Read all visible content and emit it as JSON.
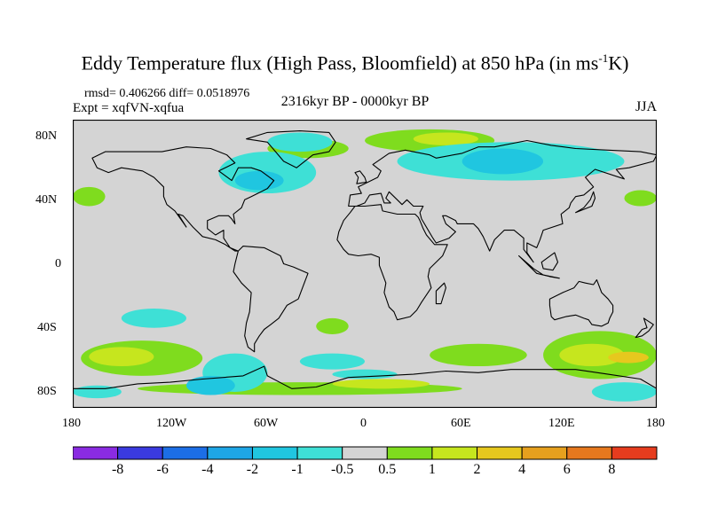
{
  "title": {
    "main": "Eddy Temperature flux (High Pass, Bloomfield) at 850 hPa (in ms",
    "sup": "-1",
    "end": "K)"
  },
  "stats": "rmsd= 0.406266 diff= 0.0518976",
  "experiment": "Expt = xqfVN-xqfua",
  "period": "2316kyr BP - 0000kyr BP",
  "season": "JJA",
  "colors": {
    "land_outline": "#000000",
    "neutral": "#d4d4d4"
  },
  "axes": {
    "lat_ticks": [
      "80N",
      "40N",
      "0",
      "40S",
      "80S"
    ],
    "lon_ticks": [
      "180",
      "120W",
      "60W",
      "0",
      "60E",
      "120E",
      "180"
    ]
  },
  "colorbar": {
    "colors": [
      "#8a2be2",
      "#3a3ae0",
      "#1c6ee6",
      "#1ea6e6",
      "#20c6e0",
      "#3ee0d6",
      "#d4d4d4",
      "#7fdc1e",
      "#c6e61e",
      "#e6c81e",
      "#e6a01e",
      "#e6781e",
      "#e63c1e"
    ],
    "labels": [
      "-8",
      "-6",
      "-4",
      "-2",
      "-1",
      "-0.5",
      "0.5",
      "1",
      "2",
      "4",
      "6",
      "8"
    ]
  },
  "features": [
    {
      "type": "pos",
      "color": "#7fdc1e",
      "ll": [
        -180,
        48,
        -160,
        36
      ]
    },
    {
      "type": "pos",
      "color": "#7fdc1e",
      "ll": [
        160,
        46,
        180,
        36
      ]
    },
    {
      "type": "pos",
      "color": "#7fdc1e",
      "ll": [
        -175,
        -48,
        -100,
        -70
      ]
    },
    {
      "type": "pos",
      "color": "#c6e61e",
      "ll": [
        -170,
        -52,
        -130,
        -64
      ]
    },
    {
      "type": "pos",
      "color": "#7fdc1e",
      "ll": [
        40,
        -50,
        100,
        -64
      ]
    },
    {
      "type": "pos",
      "color": "#7fdc1e",
      "ll": [
        110,
        -42,
        180,
        -72
      ]
    },
    {
      "type": "pos",
      "color": "#c6e61e",
      "ll": [
        120,
        -50,
        160,
        -64
      ]
    },
    {
      "type": "pos",
      "color": "#e6c81e",
      "ll": [
        150,
        -55,
        175,
        -62
      ]
    },
    {
      "type": "pos",
      "color": "#7fdc1e",
      "ll": [
        -140,
        -74,
        60,
        -82
      ]
    },
    {
      "type": "pos",
      "color": "#c6e61e",
      "ll": [
        -20,
        -72,
        40,
        -78
      ]
    },
    {
      "type": "pos",
      "color": "#7fdc1e",
      "ll": [
        0,
        84,
        80,
        70
      ]
    },
    {
      "type": "pos",
      "color": "#c6e61e",
      "ll": [
        30,
        82,
        70,
        74
      ]
    },
    {
      "type": "pos",
      "color": "#7fdc1e",
      "ll": [
        -60,
        78,
        -10,
        66
      ]
    },
    {
      "type": "pos",
      "color": "#7fdc1e",
      "ll": [
        -30,
        -34,
        -10,
        -44
      ]
    },
    {
      "type": "neg",
      "color": "#3ee0d6",
      "ll": [
        -60,
        82,
        -20,
        70
      ]
    },
    {
      "type": "neg",
      "color": "#3ee0d6",
      "ll": [
        -90,
        70,
        -30,
        44
      ]
    },
    {
      "type": "neg",
      "color": "#20c6e0",
      "ll": [
        -80,
        58,
        -50,
        46
      ]
    },
    {
      "type": "neg",
      "color": "#3ee0d6",
      "ll": [
        20,
        76,
        160,
        52
      ]
    },
    {
      "type": "neg",
      "color": "#20c6e0",
      "ll": [
        60,
        72,
        110,
        56
      ]
    },
    {
      "type": "neg",
      "color": "#3ee0d6",
      "ll": [
        -150,
        -28,
        -110,
        -40
      ]
    },
    {
      "type": "neg",
      "color": "#3ee0d6",
      "ll": [
        -100,
        -56,
        -60,
        -80
      ]
    },
    {
      "type": "neg",
      "color": "#20c6e0",
      "ll": [
        -110,
        -70,
        -80,
        -82
      ]
    },
    {
      "type": "neg",
      "color": "#3ee0d6",
      "ll": [
        -40,
        -56,
        0,
        -66
      ]
    },
    {
      "type": "neg",
      "color": "#3ee0d6",
      "ll": [
        140,
        -74,
        180,
        -86
      ]
    },
    {
      "type": "neg",
      "color": "#3ee0d6",
      "ll": [
        -180,
        -76,
        -150,
        -84
      ]
    },
    {
      "type": "neg",
      "color": "#3ee0d6",
      "ll": [
        -20,
        -66,
        20,
        -72
      ]
    }
  ]
}
